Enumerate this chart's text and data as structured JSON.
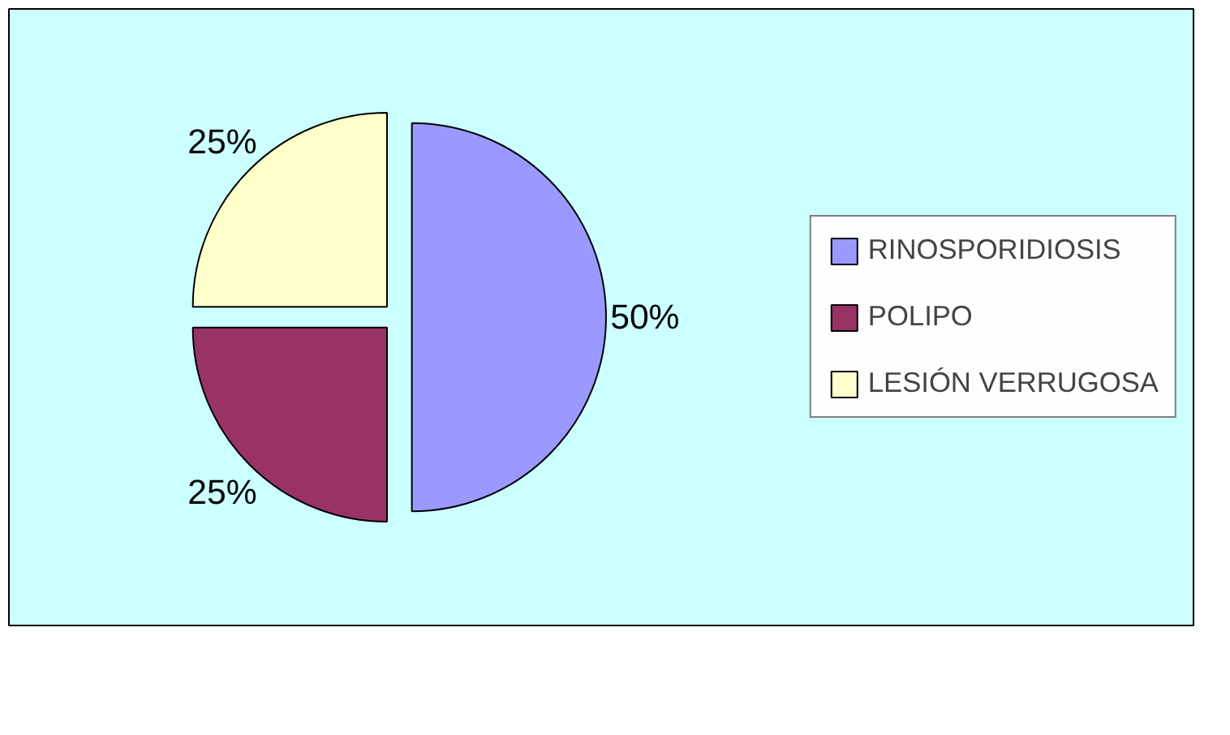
{
  "chart_data": {
    "type": "pie",
    "categories": [
      "RINOSPORIDIOSIS",
      "POLIPO",
      "LESIÓN VERRUGOSA"
    ],
    "values": [
      50,
      25,
      25
    ],
    "colors": [
      "#9999ff",
      "#993366",
      "#ffffcc"
    ],
    "value_labels": [
      "50%",
      "25%",
      "25%"
    ],
    "legend": "right"
  }
}
